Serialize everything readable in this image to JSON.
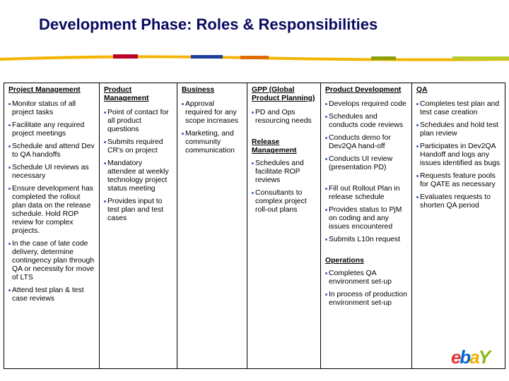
{
  "title": "Development Phase: Roles & Responsibilities",
  "table": {
    "columns": [
      {
        "header": "Project Management",
        "sections": [
          {
            "items": [
              "Monitor status of all project tasks",
              "Facilitate any required project  meetings",
              "Schedule and attend Dev to QA handoffs",
              "Schedule UI reviews as necessary",
              "Ensure development has completed the rollout plan data on the release schedule. Hold ROP review for complex projects.",
              "In the case of late code delivery, determine contingency plan through QA or necessity for move of LTS",
              "Attend test plan & test case reviews"
            ]
          }
        ]
      },
      {
        "header": "Product Management",
        "sections": [
          {
            "items": [
              "Point of contact for all product questions",
              "Submits required CR's on project",
              "Mandatory attendee at  weekly technology project status meeting",
              "Provides input to test plan and test cases"
            ]
          }
        ]
      },
      {
        "header": "Business",
        "sections": [
          {
            "items": [
              "Approval required for any scope increases",
              "Marketing,  and community communication"
            ]
          }
        ]
      },
      {
        "header": "GPP (Global Product Planning)",
        "sections": [
          {
            "items": [
              "PD and Ops resourcing needs"
            ]
          },
          {
            "heading": "Release Management",
            "items": [
              "Schedules and facilitate ROP reviews",
              "Consultants to complex project roll-out plans"
            ]
          }
        ]
      },
      {
        "header": "Product Development",
        "sections": [
          {
            "items": [
              "Develops required code",
              "Schedules and conducts code reviews",
              "Conducts demo for Dev2QA  hand-off",
              "Conducts UI review (presentation PD)"
            ]
          },
          {
            "items": [
              "Fill out Rollout Plan in release schedule",
              "Provides status to PjM on coding and any issues encountered",
              "Submits L10n request"
            ]
          },
          {
            "heading": "Operations",
            "items": [
              "Completes QA environment set-up",
              "In process of production environment set-up"
            ]
          }
        ]
      },
      {
        "header": "QA",
        "sections": [
          {
            "items": [
              "Completes test plan and test case creation",
              "Schedules and hold test plan review",
              "Participates in Dev2QA Handoff and logs any issues identified as bugs",
              "Requests feature pools for QATE as necessary",
              "Evaluates requests to shorten QA period"
            ]
          }
        ]
      }
    ]
  },
  "logo": [
    "e",
    "b",
    "a",
    "Y"
  ]
}
